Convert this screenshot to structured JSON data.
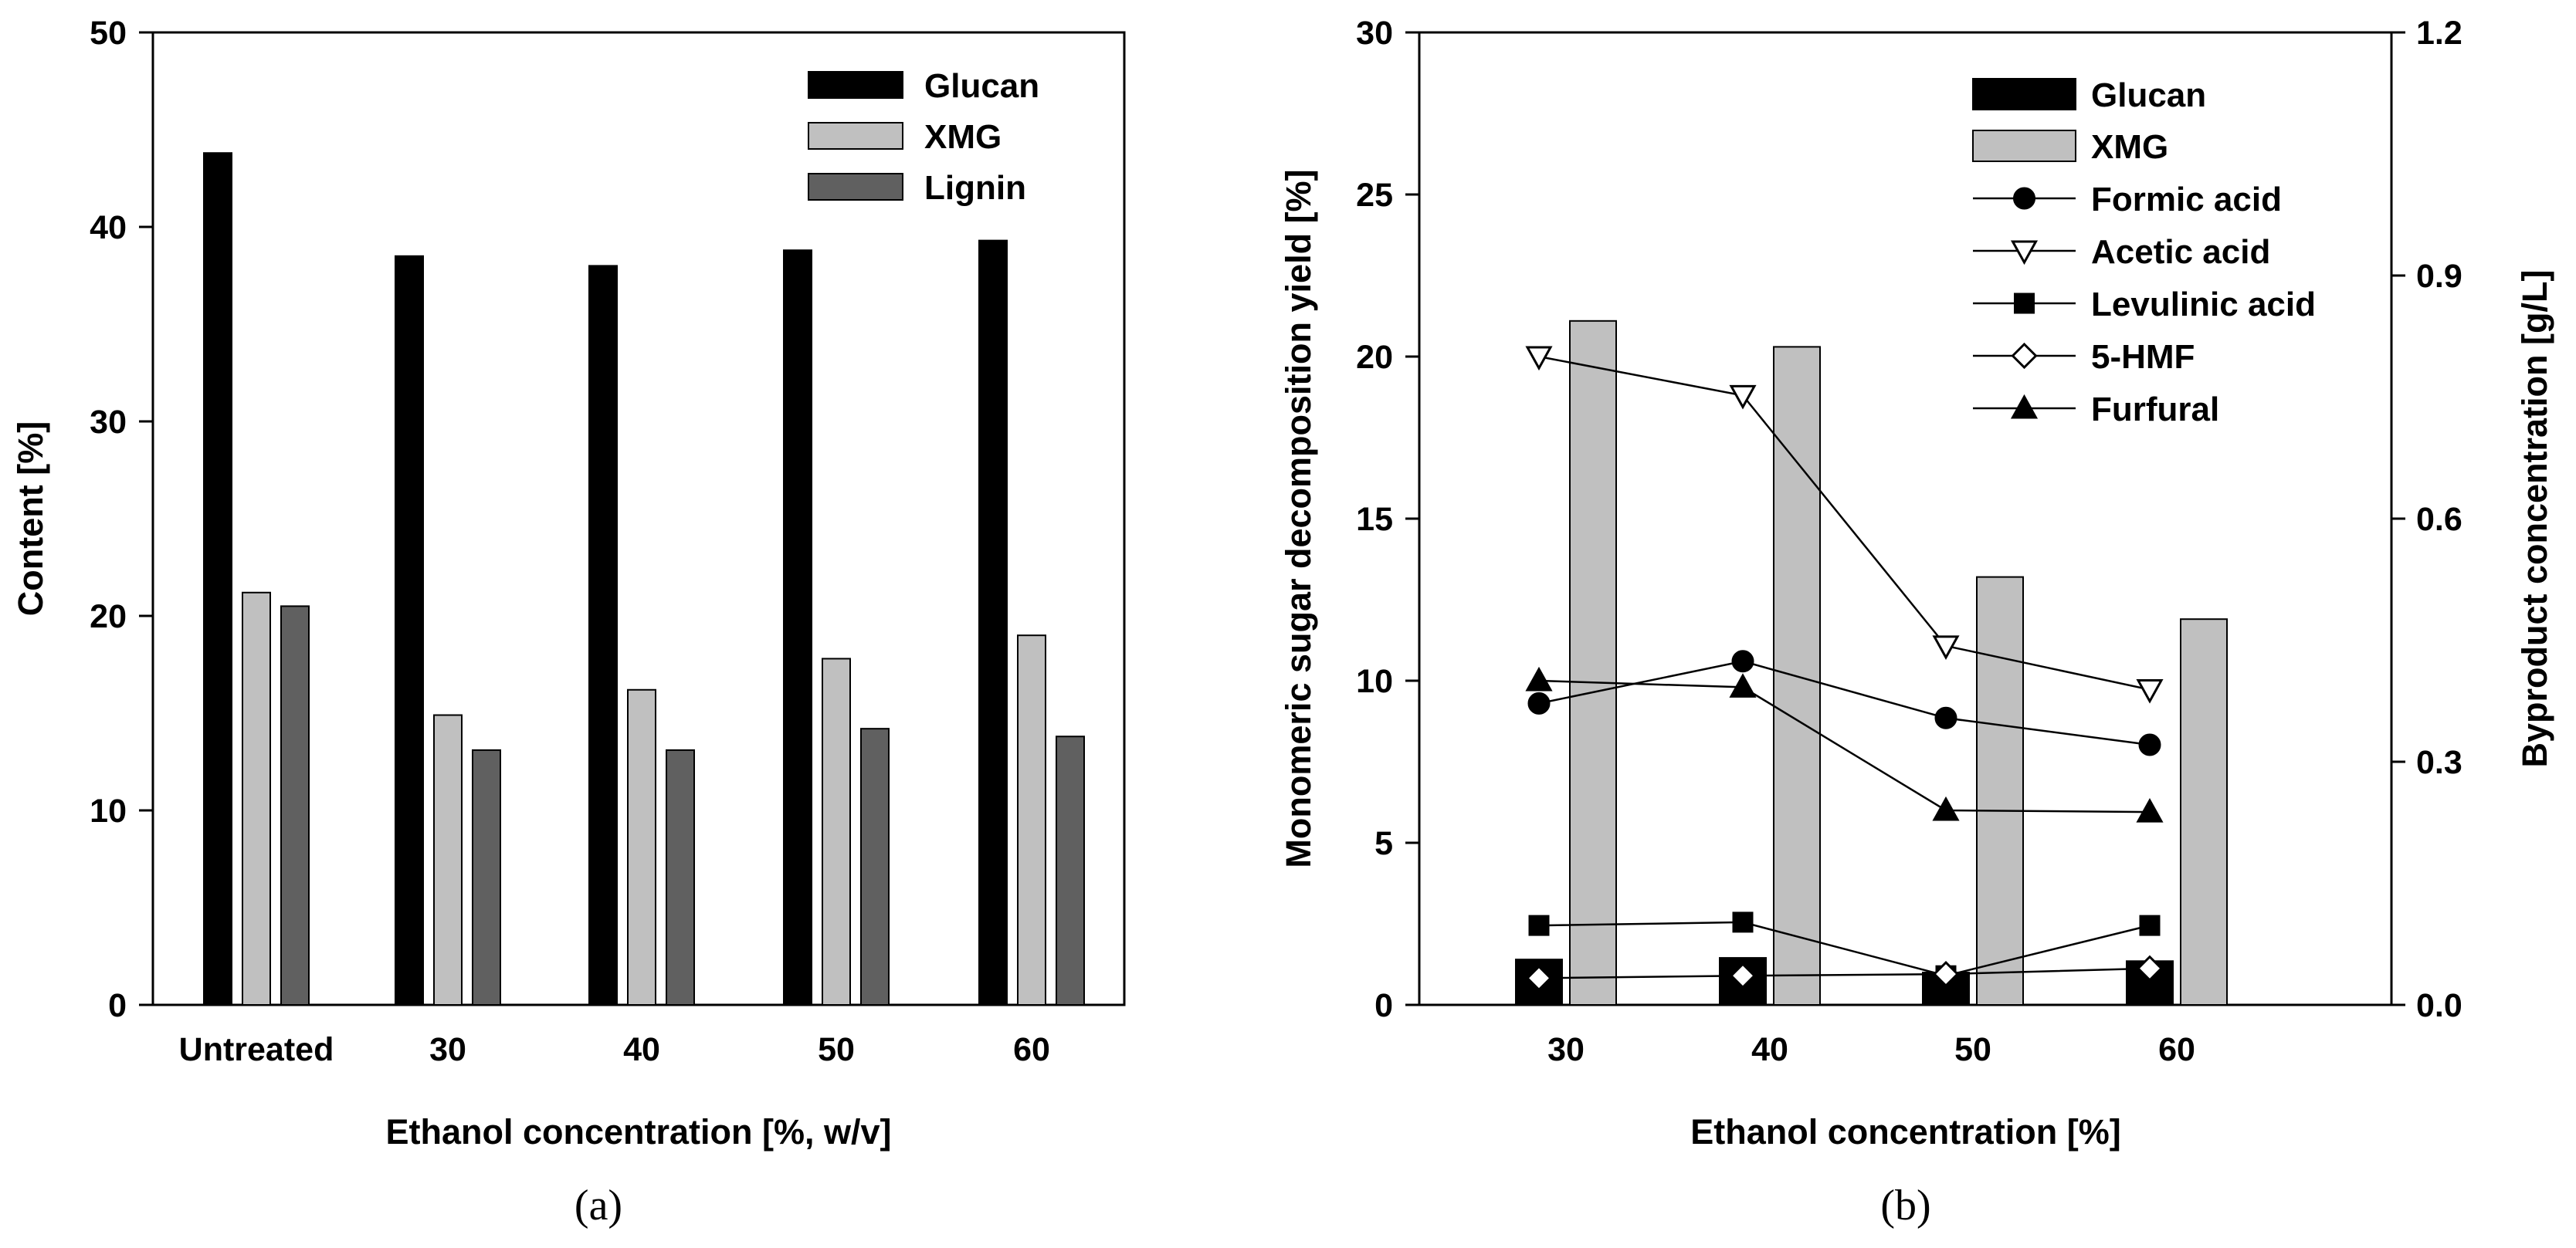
{
  "chart_data": [
    {
      "type": "bar",
      "panel_label": "(a)",
      "xlabel": "Ethanol concentration [%, w/v]",
      "ylabel": "Content [%]",
      "ylim": [
        0,
        50
      ],
      "yticks": [
        0,
        10,
        20,
        30,
        40,
        50
      ],
      "categories": [
        "Untreated",
        "30",
        "40",
        "50",
        "60"
      ],
      "legend_position": "top-right",
      "series": [
        {
          "name": "Glucan",
          "color": "#000000",
          "values": [
            43.8,
            38.5,
            38.0,
            38.8,
            39.3
          ]
        },
        {
          "name": "XMG",
          "color": "#c0c0c0",
          "values": [
            21.2,
            14.9,
            16.2,
            17.8,
            19.0
          ]
        },
        {
          "name": "Lignin",
          "color": "#606060",
          "values": [
            20.5,
            13.1,
            13.1,
            14.2,
            13.8
          ]
        }
      ]
    },
    {
      "type": "bar+line",
      "panel_label": "(b)",
      "xlabel": "Ethanol concentration [%]",
      "ylabel_left": "Monomeric sugar decomposition yield [%]",
      "ylabel_right": "Byproduct concentration [g/L]",
      "ylim_left": [
        0,
        30
      ],
      "yticks_left": [
        0,
        5,
        10,
        15,
        20,
        25,
        30
      ],
      "ylim_right": [
        0,
        1.2
      ],
      "yticks_right": [
        "0.0",
        "0.3",
        "0.6",
        "0.9",
        "1.2"
      ],
      "categories": [
        "30",
        "40",
        "50",
        "60"
      ],
      "legend_position": "top-right",
      "bar_series": [
        {
          "name": "Glucan",
          "color": "#000000",
          "axis": "left",
          "values": [
            1.4,
            1.45,
            1.0,
            1.35
          ]
        },
        {
          "name": "XMG",
          "color": "#c0c0c0",
          "axis": "left",
          "values": [
            21.1,
            20.3,
            13.2,
            11.9
          ]
        }
      ],
      "line_series": [
        {
          "name": "Formic acid",
          "marker": "circle",
          "filled": true,
          "axis": "right",
          "values": [
            0.372,
            0.424,
            0.354,
            0.321
          ]
        },
        {
          "name": "Acetic acid",
          "marker": "triangle-down",
          "filled": false,
          "axis": "right",
          "values": [
            0.8,
            0.752,
            0.443,
            0.389
          ]
        },
        {
          "name": "Levulinic acid",
          "marker": "square",
          "filled": true,
          "axis": "right",
          "values": [
            0.098,
            0.102,
            0.036,
            0.098
          ]
        },
        {
          "name": "5-HMF",
          "marker": "diamond",
          "filled": false,
          "axis": "right",
          "values": [
            0.033,
            0.036,
            0.038,
            0.045
          ]
        },
        {
          "name": "Furfural",
          "marker": "triangle-up",
          "filled": true,
          "axis": "right",
          "values": [
            0.4,
            0.392,
            0.24,
            0.238
          ]
        }
      ]
    }
  ]
}
